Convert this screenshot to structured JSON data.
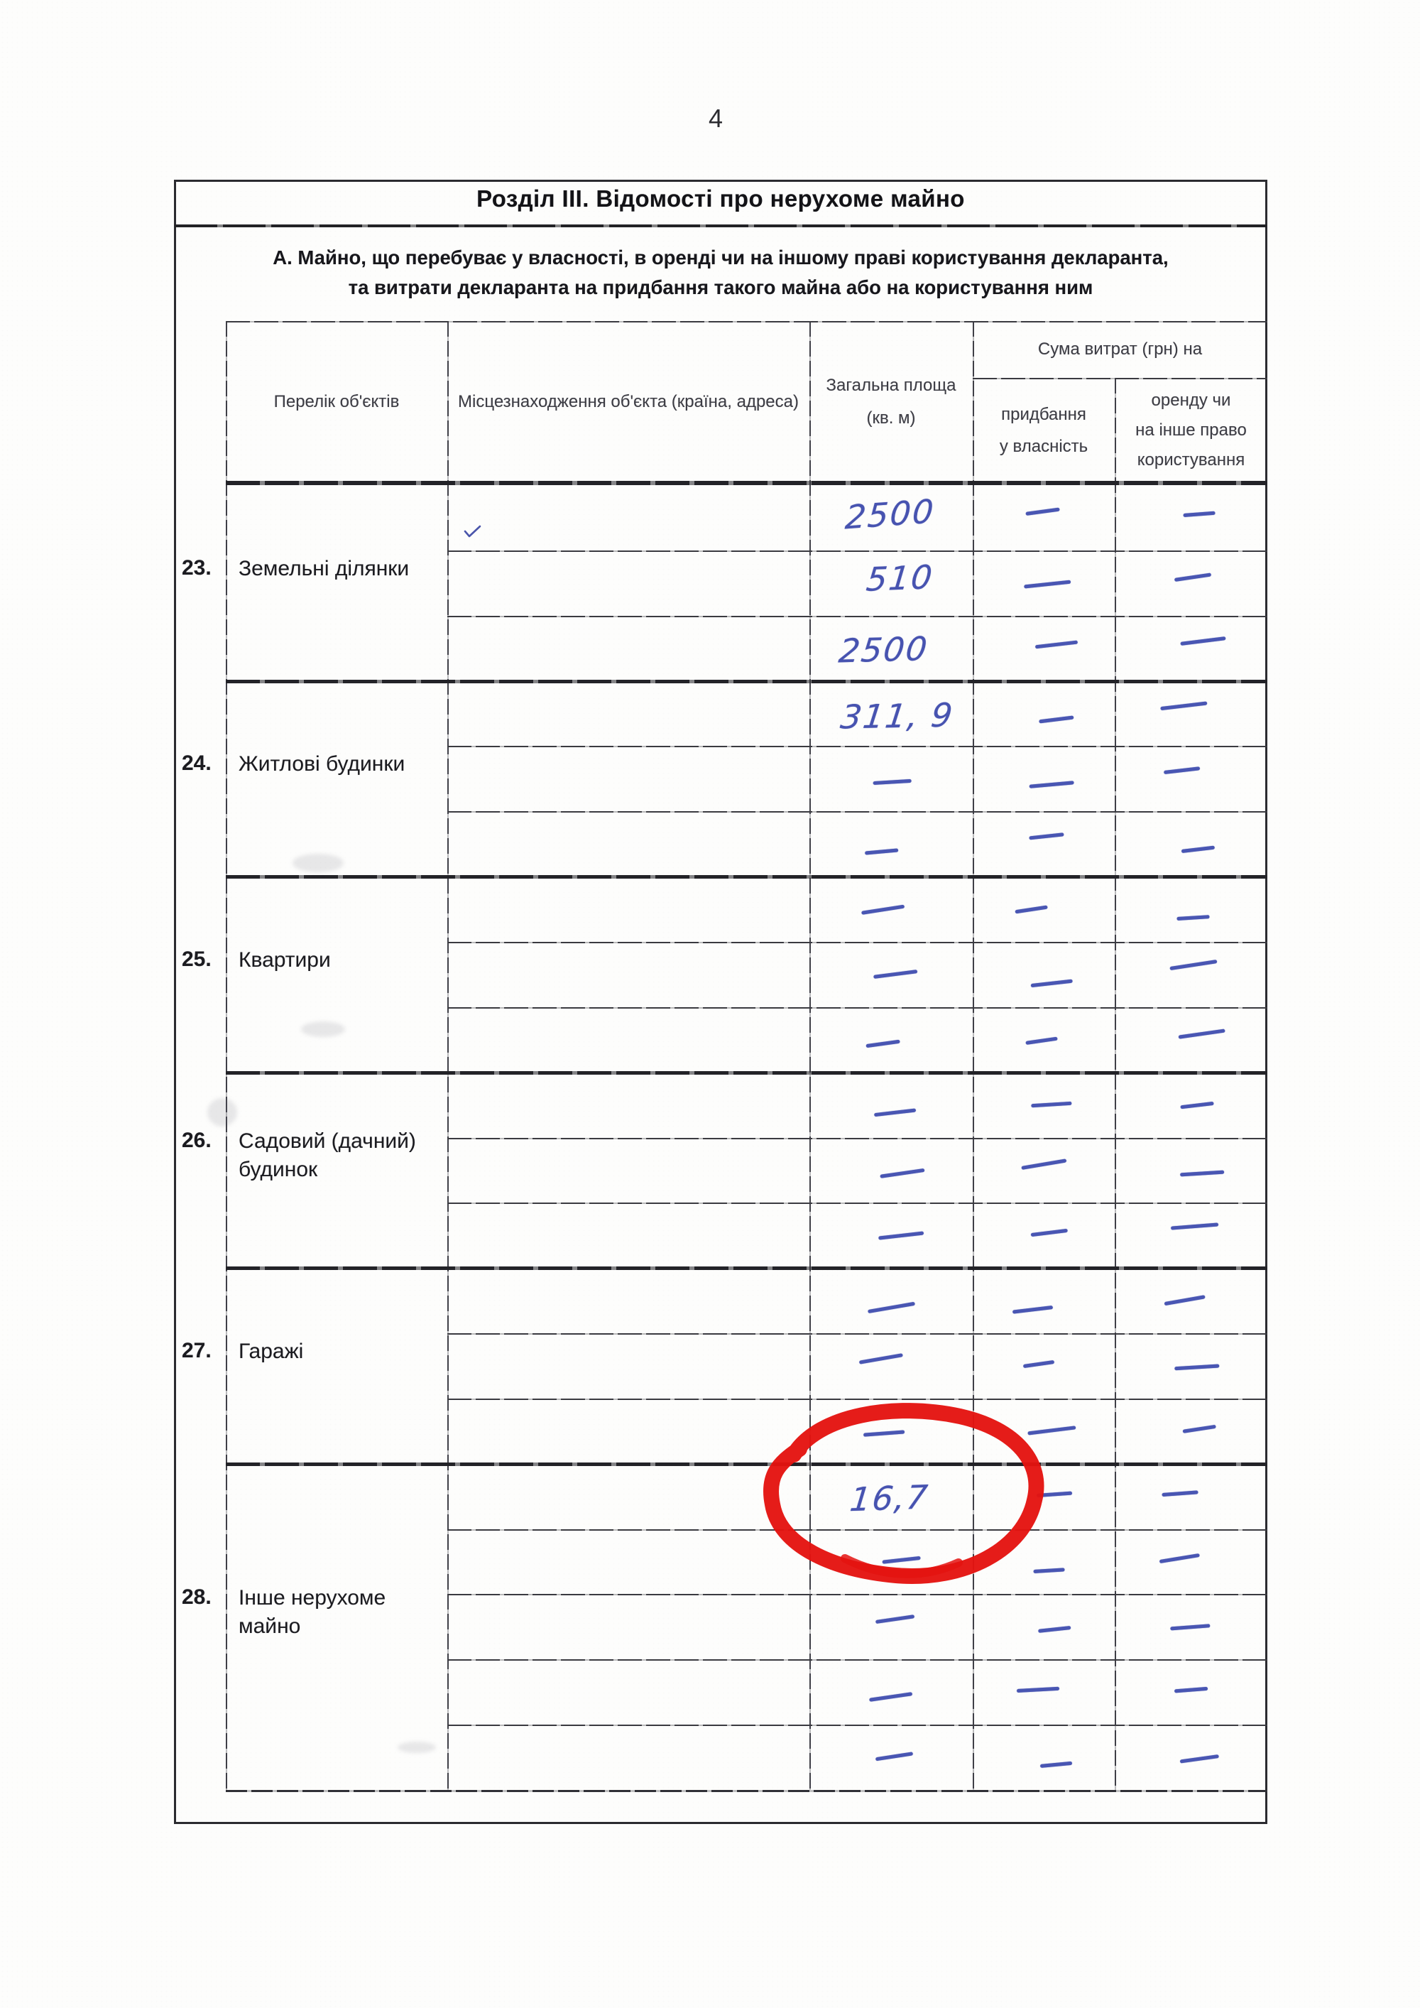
{
  "page": {
    "number": "4"
  },
  "section": {
    "title": "Розділ III. Відомості про нерухоме майно",
    "subtitle_line1": "А. Майно, що перебуває у власності, в оренді чи на іншому праві користування декларанта,",
    "subtitle_line2": "та витрати декларанта на придбання такого майна або на користування ним"
  },
  "table": {
    "headers": {
      "objects": "Перелік об'єктів",
      "location": "Місцезнаходження об'єкта (країна, адреса)",
      "area_line1": "Загальна площа",
      "area_line2": "(кв. м)",
      "expenses_title": "Сума витрат (грн) на",
      "purchase_line1": "придбання",
      "purchase_line2": "у власність",
      "rent_line1": "оренду чи",
      "rent_line2": "на інше право",
      "rent_line3": "користування"
    },
    "blocks": [
      {
        "num": "23.",
        "label": "Земельні ділянки",
        "rows": [
          {
            "area": "2500",
            "purchase": "—",
            "rent": "—"
          },
          {
            "area": "510",
            "purchase": "—",
            "rent": "—"
          },
          {
            "area": "2500",
            "purchase": "—",
            "rent": "—"
          }
        ]
      },
      {
        "num": "24.",
        "label": "Житлові будинки",
        "rows": [
          {
            "area": "311, 9",
            "purchase": "—",
            "rent": "—"
          },
          {
            "area": "—",
            "purchase": "—",
            "rent": "—"
          },
          {
            "area": "—",
            "purchase": "—",
            "rent": "—"
          }
        ]
      },
      {
        "num": "25.",
        "label": "Квартири",
        "rows": [
          {
            "area": "—",
            "purchase": "—",
            "rent": "—"
          },
          {
            "area": "—",
            "purchase": "—",
            "rent": "—"
          },
          {
            "area": "—",
            "purchase": "—",
            "rent": "—"
          }
        ]
      },
      {
        "num": "26.",
        "label": "Садовий (дачний)\nбудинок",
        "rows": [
          {
            "area": "—",
            "purchase": "—",
            "rent": "—"
          },
          {
            "area": "—",
            "purchase": "—",
            "rent": "—"
          },
          {
            "area": "—",
            "purchase": "—",
            "rent": "—"
          }
        ]
      },
      {
        "num": "27.",
        "label": "Гаражі",
        "rows": [
          {
            "area": "—",
            "purchase": "—",
            "rent": "—"
          },
          {
            "area": "—",
            "purchase": "—",
            "rent": "—"
          },
          {
            "area": "—",
            "purchase": "—",
            "rent": "—"
          }
        ]
      },
      {
        "num": "28.",
        "label": "Інше нерухоме\nмайно",
        "rows": [
          {
            "area": "16,7",
            "purchase": "—",
            "rent": "—",
            "annotated": true
          },
          {
            "area": "—",
            "purchase": "—",
            "rent": "—"
          },
          {
            "area": "—",
            "purchase": "—",
            "rent": "—"
          },
          {
            "area": "—",
            "purchase": "—",
            "rent": "—"
          },
          {
            "area": "—",
            "purchase": "—",
            "rent": "—"
          }
        ]
      }
    ],
    "annotation": {
      "shape": "hand-drawn-red-circle",
      "marks_value": "16,7",
      "color": "#e41310"
    }
  },
  "ink": {
    "handwriting_color": "#4753b0",
    "dash_symbol": "—"
  }
}
